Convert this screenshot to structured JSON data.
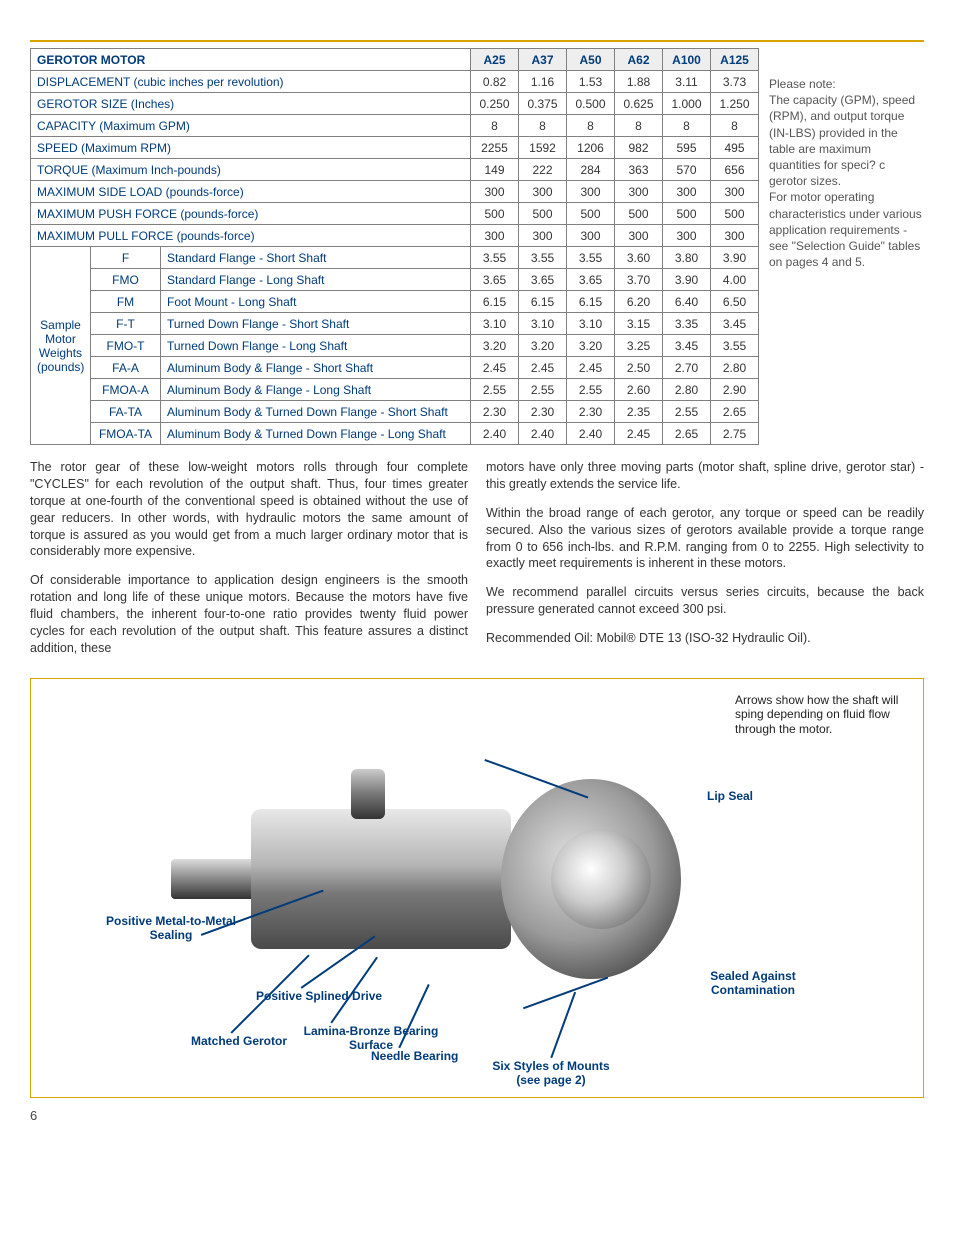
{
  "table": {
    "title": "GEROTOR MOTOR",
    "models": [
      "A25",
      "A37",
      "A50",
      "A62",
      "A100",
      "A125"
    ],
    "rows": [
      {
        "label": "DISPLACEMENT (cubic inches per revolution)",
        "vals": [
          "0.82",
          "1.16",
          "1.53",
          "1.88",
          "3.11",
          "3.73"
        ]
      },
      {
        "label": "GEROTOR SIZE (Inches)",
        "vals": [
          "0.250",
          "0.375",
          "0.500",
          "0.625",
          "1.000",
          "1.250"
        ]
      },
      {
        "label": "CAPACITY (Maximum GPM)",
        "vals": [
          "8",
          "8",
          "8",
          "8",
          "8",
          "8"
        ]
      },
      {
        "label": "SPEED (Maximum RPM)",
        "vals": [
          "2255",
          "1592",
          "1206",
          "982",
          "595",
          "495"
        ]
      },
      {
        "label": "TORQUE (Maximum Inch-pounds)",
        "vals": [
          "149",
          "222",
          "284",
          "363",
          "570",
          "656"
        ]
      },
      {
        "label": "MAXIMUM SIDE LOAD (pounds-force)",
        "vals": [
          "300",
          "300",
          "300",
          "300",
          "300",
          "300"
        ]
      },
      {
        "label": "MAXIMUM PUSH FORCE (pounds-force)",
        "vals": [
          "500",
          "500",
          "500",
          "500",
          "500",
          "500"
        ]
      },
      {
        "label": "MAXIMUM PULL FORCE (pounds-force)",
        "vals": [
          "300",
          "300",
          "300",
          "300",
          "300",
          "300"
        ]
      }
    ],
    "weights_header": "Sample Motor Weights (pounds)",
    "weights": [
      {
        "code": "F",
        "desc": "Standard Flange - Short Shaft",
        "vals": [
          "3.55",
          "3.55",
          "3.55",
          "3.60",
          "3.80",
          "3.90"
        ]
      },
      {
        "code": "FMO",
        "desc": "Standard Flange - Long Shaft",
        "vals": [
          "3.65",
          "3.65",
          "3.65",
          "3.70",
          "3.90",
          "4.00"
        ]
      },
      {
        "code": "FM",
        "desc": "Foot Mount - Long Shaft",
        "vals": [
          "6.15",
          "6.15",
          "6.15",
          "6.20",
          "6.40",
          "6.50"
        ]
      },
      {
        "code": "F-T",
        "desc": "Turned Down Flange - Short Shaft",
        "vals": [
          "3.10",
          "3.10",
          "3.10",
          "3.15",
          "3.35",
          "3.45"
        ]
      },
      {
        "code": "FMO-T",
        "desc": "Turned Down Flange - Long Shaft",
        "vals": [
          "3.20",
          "3.20",
          "3.20",
          "3.25",
          "3.45",
          "3.55"
        ]
      },
      {
        "code": "FA-A",
        "desc": "Aluminum Body & Flange - Short Shaft",
        "vals": [
          "2.45",
          "2.45",
          "2.45",
          "2.50",
          "2.70",
          "2.80"
        ]
      },
      {
        "code": "FMOA-A",
        "desc": "Aluminum Body & Flange - Long Shaft",
        "vals": [
          "2.55",
          "2.55",
          "2.55",
          "2.60",
          "2.80",
          "2.90"
        ]
      },
      {
        "code": "FA-TA",
        "desc": "Aluminum Body & Turned Down Flange - Short Shaft",
        "vals": [
          "2.30",
          "2.30",
          "2.30",
          "2.35",
          "2.55",
          "2.65"
        ]
      },
      {
        "code": "FMOA-TA",
        "desc": "Aluminum Body & Turned Down Flange - Long Shaft",
        "vals": [
          "2.40",
          "2.40",
          "2.40",
          "2.45",
          "2.65",
          "2.75"
        ]
      }
    ]
  },
  "sidenote": "Please note:\nThe capacity (GPM), speed (RPM), and output torque (IN-LBS) provided in the table are maximum quantities for speci? c gerotor sizes.\nFor motor operating characteristics under various application requirements - see \"Selection Guide\" tables on pages 4 and 5.",
  "para1": "The rotor gear of these low-weight motors rolls through four complete \"CYCLES\" for each revolution of the output shaft. Thus, four times greater torque at one-fourth of the conventional speed is obtained without the use of gear reducers. In other words, with hydraulic motors the same amount of torque is assured as you would get from a much larger ordinary motor that is considerably more expensive.",
  "para2": "Of considerable importance to application design engineers is the smooth rotation and long life of these unique motors. Because the motors have five fluid chambers, the inherent four-to-one ratio provides twenty fluid power cycles for each revolution of the output shaft. This feature assures a distinct addition, these",
  "para3": "motors have only three moving parts (motor shaft, spline drive, gerotor star) - this greatly extends the service life.",
  "para4": "Within the broad range of each gerotor, any torque or speed can be readily secured. Also the various sizes of gerotors available provide a torque range from 0 to 656 inch-lbs. and R.P.M. ranging from 0 to 2255. High selectivity to exactly meet requirements is  inherent in these motors.",
  "para5": "We recommend parallel circuits versus series circuits,  because the back pressure generated cannot exceed 300 psi.",
  "para6": "Recommended Oil: Mobil® DTE 13 (ISO-32 Hydraulic Oil).",
  "diagram": {
    "arrow_note": "Arrows show how the shaft will sping depending on fluid flow through the motor.",
    "callouts": {
      "lip_seal": "Lip Seal",
      "sealed": "Sealed Against Contamination",
      "six_mounts": "Six Styles of Mounts (see page 2)",
      "needle": "Needle Bearing",
      "lamina": "Lamina-Bronze Bearing Surface",
      "matched": "Matched Gerotor",
      "spline": "Positive Splined Drive",
      "metal": "Positive Metal-to-Metal Sealing"
    }
  },
  "pagenum": "6"
}
